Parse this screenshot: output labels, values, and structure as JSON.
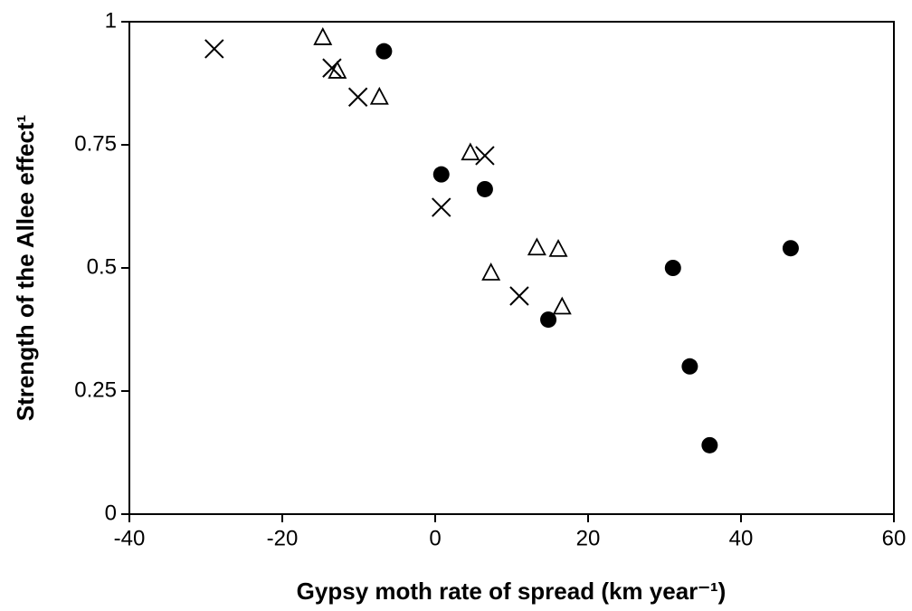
{
  "chart_data": {
    "type": "scatter",
    "x_label": "Gypsy moth rate of spread (km year⁻¹)",
    "y_label": "Strength of the Allee effect¹",
    "xlim": [
      -40,
      60
    ],
    "xticks": [
      -40,
      -20,
      0,
      20,
      40,
      60
    ],
    "ylim": [
      0,
      1
    ],
    "yticks": [
      0,
      0.25,
      0.5,
      0.75,
      1
    ],
    "series": [
      {
        "marker": "circle",
        "color": "#000000",
        "x": [
          -6.7,
          0.8,
          6.5,
          14.8,
          31.1,
          33.3,
          35.9,
          46.5
        ],
        "values": [
          0.94,
          0.69,
          0.66,
          0.395,
          0.5,
          0.3,
          0.14,
          0.54
        ]
      },
      {
        "marker": "x",
        "color": "#000000",
        "x": [
          -28.9,
          -13.5,
          -10.1,
          0.8,
          6.5,
          11.0
        ],
        "values": [
          0.945,
          0.906,
          0.847,
          0.623,
          0.728,
          0.443
        ]
      },
      {
        "marker": "triangle",
        "color": "#000000",
        "x": [
          -14.7,
          -12.8,
          -7.3,
          4.6,
          7.3,
          13.3,
          16.1,
          16.6
        ],
        "values": [
          0.967,
          0.899,
          0.846,
          0.733,
          0.489,
          0.54,
          0.537,
          0.42
        ]
      }
    ]
  }
}
